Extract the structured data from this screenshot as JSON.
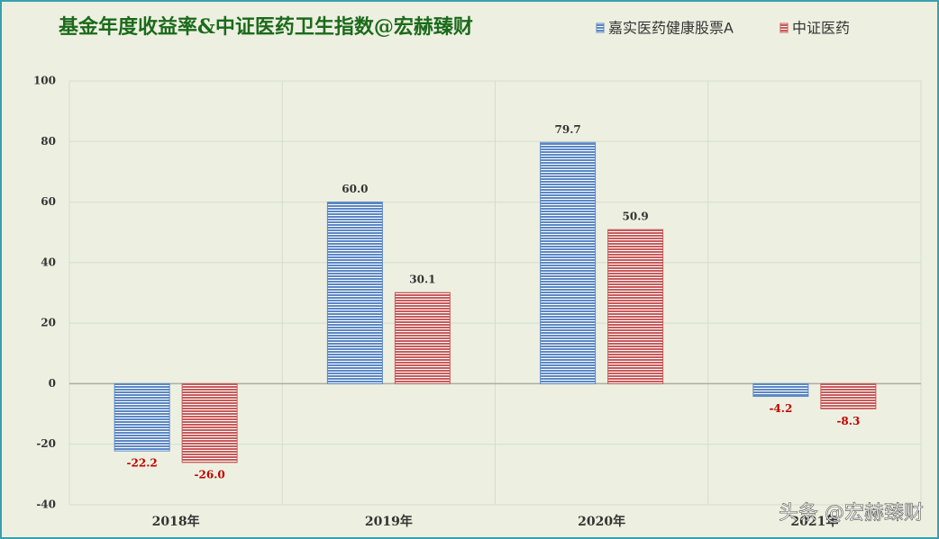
{
  "chart_data": {
    "type": "bar",
    "title": "基金年度收益率&中证医药卫生指数@宏赫臻财",
    "categories": [
      "2018年",
      "2019年",
      "2020年",
      "2021年"
    ],
    "series": [
      {
        "name": "嘉实医药健康股票A",
        "color": "#5b87c5",
        "values": [
          -22.2,
          60,
          79.7,
          -4.2
        ],
        "value_labels": [
          "-22.2",
          "60.0",
          "79.7",
          "-4.2"
        ]
      },
      {
        "name": "中证医药",
        "color": "#c85a5a",
        "values": [
          -26,
          30.1,
          50.9,
          -8.3
        ],
        "value_labels": [
          "-26.0",
          "30.1",
          "50.9",
          "-8.3"
        ]
      }
    ],
    "ylim": [
      -40,
      100
    ],
    "yticks": [
      -40,
      -20,
      0,
      20,
      40,
      60,
      80,
      100
    ],
    "grid": true,
    "legend": "top-right",
    "watermark": "头条 @宏赫臻财"
  }
}
